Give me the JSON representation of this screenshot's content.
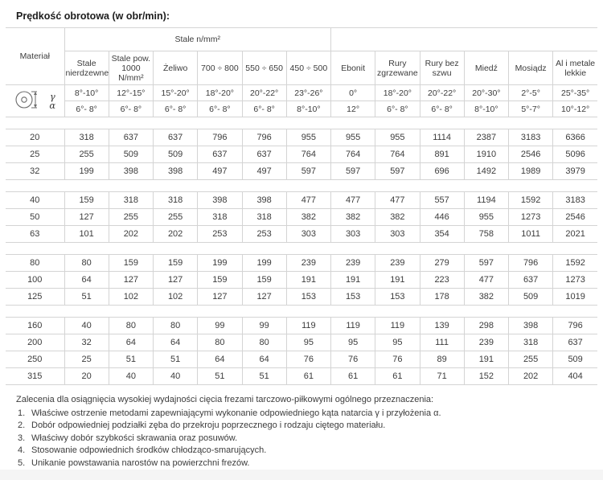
{
  "title": "Prędkość obrotowa (w obr/min):",
  "table": {
    "material_header": "Materiał",
    "steel_group_header": "Stale n/mm²",
    "gamma_label": "γ",
    "alpha_label": "α",
    "columns": [
      "Stale nierdzewne",
      "Stale pow. 1000 N/mm²",
      "Żeliwo",
      "700 ÷ 800",
      "550 ÷ 650",
      "450 ÷ 500",
      "Ebonit",
      "Rury zgrzewane",
      "Rury bez szwu",
      "Miedź",
      "Mosiądz",
      "Al i metale lekkie"
    ],
    "gamma_angles": [
      "8°-10°",
      "12°-15°",
      "15°-20°",
      "18°-20°",
      "20°-22°",
      "23°-26°",
      "0°",
      "18°-20°",
      "20°-22°",
      "20°-30°",
      "2°-5°",
      "25°-35°"
    ],
    "alpha_angles": [
      "6°- 8°",
      "6°- 8°",
      "6°- 8°",
      "6°- 8°",
      "6°- 8°",
      "8°-10°",
      "12°",
      "6°- 8°",
      "6°- 8°",
      "8°-10°",
      "5°-7°",
      "10°-12°"
    ],
    "groups": [
      {
        "rows": [
          {
            "diameter": "20",
            "values": [
              318,
              637,
              637,
              796,
              796,
              955,
              955,
              955,
              1114,
              2387,
              3183,
              6366
            ]
          },
          {
            "diameter": "25",
            "values": [
              255,
              509,
              509,
              637,
              637,
              764,
              764,
              764,
              891,
              1910,
              2546,
              5096
            ]
          },
          {
            "diameter": "32",
            "values": [
              199,
              398,
              398,
              497,
              497,
              597,
              597,
              597,
              696,
              1492,
              1989,
              3979
            ]
          }
        ]
      },
      {
        "rows": [
          {
            "diameter": "40",
            "values": [
              159,
              318,
              318,
              398,
              398,
              477,
              477,
              477,
              557,
              1194,
              1592,
              3183
            ]
          },
          {
            "diameter": "50",
            "values": [
              127,
              255,
              255,
              318,
              318,
              382,
              382,
              382,
              446,
              955,
              1273,
              2546
            ]
          },
          {
            "diameter": "63",
            "values": [
              101,
              202,
              202,
              253,
              253,
              303,
              303,
              303,
              354,
              758,
              1011,
              2021
            ]
          }
        ]
      },
      {
        "rows": [
          {
            "diameter": "80",
            "values": [
              80,
              159,
              159,
              199,
              199,
              239,
              239,
              239,
              279,
              597,
              796,
              1592
            ]
          },
          {
            "diameter": "100",
            "values": [
              64,
              127,
              127,
              159,
              159,
              191,
              191,
              191,
              223,
              477,
              637,
              1273
            ]
          },
          {
            "diameter": "125",
            "values": [
              51,
              102,
              102,
              127,
              127,
              153,
              153,
              153,
              178,
              382,
              509,
              1019
            ]
          }
        ]
      },
      {
        "rows": [
          {
            "diameter": "160",
            "values": [
              40,
              80,
              80,
              99,
              99,
              119,
              119,
              119,
              139,
              298,
              398,
              796
            ]
          },
          {
            "diameter": "200",
            "values": [
              32,
              64,
              64,
              80,
              80,
              95,
              95,
              95,
              111,
              239,
              318,
              637
            ]
          },
          {
            "diameter": "250",
            "values": [
              25,
              51,
              51,
              64,
              64,
              76,
              76,
              76,
              89,
              191,
              255,
              509
            ]
          },
          {
            "diameter": "315",
            "values": [
              20,
              40,
              40,
              51,
              51,
              61,
              61,
              61,
              71,
              152,
              202,
              404
            ]
          }
        ]
      }
    ]
  },
  "notes": {
    "intro": "Zalecenia dla osiągnięcia wysokiej wydajności cięcia frezami tarczowo-piłkowymi ogólnego przeznaczenia:",
    "items": [
      "Właściwe ostrzenie metodami zapewniającymi wykonanie odpowiedniego kąta natarcia γ i przyłożenia α.",
      "Dobór odpowiedniej podziałki zęba do przekroju poprzecznego i rodzaju ciętego materiału.",
      "Właściwy dobór szybkości skrawania oraz posuwów.",
      "Stosowanie odpowiednich środków chłodząco-smarujących.",
      "Unikanie powstawania narostów na powierzchni frezów."
    ]
  },
  "colors": {
    "border": "#d4d4d4",
    "text": "#3c3c3c",
    "title": "#1d1d1d",
    "bottom_strip": "#f5f5f5"
  }
}
